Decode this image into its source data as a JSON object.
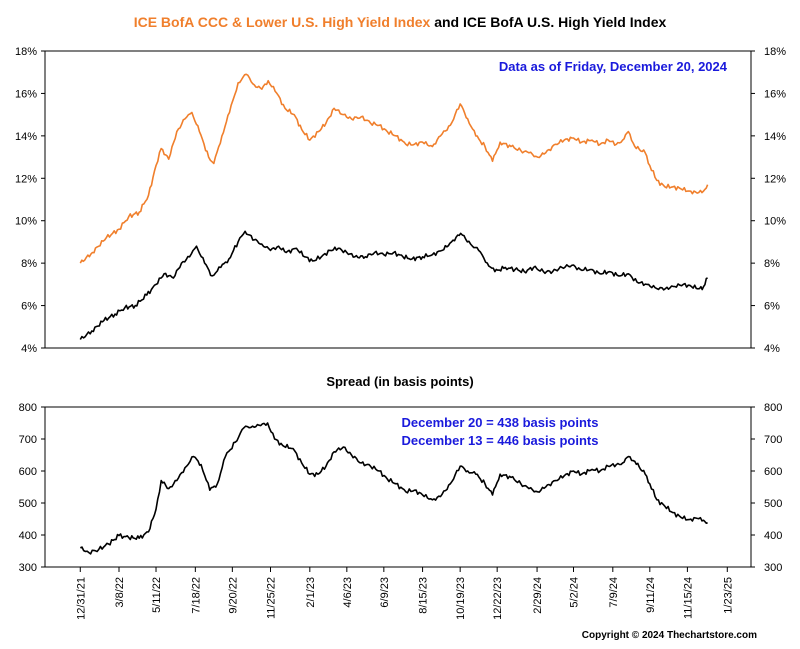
{
  "title": {
    "part1": "ICE BofA CCC & Lower U.S. High Yield Index",
    "part2": " and ICE BofA U.S. High Yield Index",
    "part1_color": "#f07f2c",
    "part2_color": "#000000"
  },
  "annotation_top": "Data as of Friday, December 20, 2024",
  "annotation_bottom_1": "December 20 = 438 basis points",
  "annotation_bottom_2": "December 13 = 446 basis points",
  "annotation_color": "#1a1adc",
  "spread_title": "Spread (in basis points)",
  "copyright": "Copyright © 2024 Thechartstore.com",
  "chart_data": [
    {
      "type": "line",
      "ylim": [
        4,
        18
      ],
      "yticks": [
        4,
        6,
        8,
        10,
        12,
        14,
        16,
        18
      ],
      "ytick_labels": [
        "4%",
        "6%",
        "8%",
        "10%",
        "12%",
        "14%",
        "16%",
        "18%"
      ],
      "grid": false,
      "legend": "none",
      "series": [
        {
          "color": "#f07f2c",
          "points": [
            [
              "2021-12-31",
              8.0
            ],
            [
              "2022-01-21",
              8.5
            ],
            [
              "2022-02-14",
              9.2
            ],
            [
              "2022-03-08",
              9.6
            ],
            [
              "2022-03-25",
              10.2
            ],
            [
              "2022-04-12",
              10.4
            ],
            [
              "2022-04-28",
              11.2
            ],
            [
              "2022-05-11",
              12.6
            ],
            [
              "2022-05-20",
              13.4
            ],
            [
              "2022-06-02",
              12.9
            ],
            [
              "2022-06-16",
              14.2
            ],
            [
              "2022-06-30",
              14.8
            ],
            [
              "2022-07-12",
              15.1
            ],
            [
              "2022-07-25",
              14.2
            ],
            [
              "2022-08-10",
              13.0
            ],
            [
              "2022-08-19",
              12.7
            ],
            [
              "2022-09-02",
              14.0
            ],
            [
              "2022-09-15",
              15.1
            ],
            [
              "2022-09-30",
              16.5
            ],
            [
              "2022-10-14",
              16.9
            ],
            [
              "2022-10-28",
              16.4
            ],
            [
              "2022-11-10",
              16.2
            ],
            [
              "2022-11-21",
              16.6
            ],
            [
              "2022-12-06",
              16.0
            ],
            [
              "2022-12-20",
              15.3
            ],
            [
              "2023-01-05",
              15.0
            ],
            [
              "2023-01-18",
              14.3
            ],
            [
              "2023-02-01",
              13.8
            ],
            [
              "2023-02-16",
              14.2
            ],
            [
              "2023-03-01",
              14.6
            ],
            [
              "2023-03-15",
              15.3
            ],
            [
              "2023-03-31",
              15.0
            ],
            [
              "2023-04-14",
              14.8
            ],
            [
              "2023-05-01",
              14.9
            ],
            [
              "2023-05-17",
              14.6
            ],
            [
              "2023-06-01",
              14.5
            ],
            [
              "2023-06-15",
              14.2
            ],
            [
              "2023-06-30",
              14.0
            ],
            [
              "2023-07-17",
              13.6
            ],
            [
              "2023-08-01",
              13.6
            ],
            [
              "2023-08-15",
              13.7
            ],
            [
              "2023-09-01",
              13.5
            ],
            [
              "2023-09-15",
              14.0
            ],
            [
              "2023-10-02",
              14.5
            ],
            [
              "2023-10-19",
              15.5
            ],
            [
              "2023-11-01",
              14.8
            ],
            [
              "2023-11-15",
              14.0
            ],
            [
              "2023-12-01",
              13.5
            ],
            [
              "2023-12-14",
              12.8
            ],
            [
              "2023-12-27",
              13.7
            ],
            [
              "2024-01-15",
              13.5
            ],
            [
              "2024-02-01",
              13.3
            ],
            [
              "2024-02-15",
              13.2
            ],
            [
              "2024-03-01",
              13.0
            ],
            [
              "2024-03-15",
              13.2
            ],
            [
              "2024-04-01",
              13.6
            ],
            [
              "2024-04-16",
              13.8
            ],
            [
              "2024-05-02",
              13.9
            ],
            [
              "2024-05-16",
              13.7
            ],
            [
              "2024-06-03",
              13.8
            ],
            [
              "2024-06-17",
              13.6
            ],
            [
              "2024-07-01",
              13.8
            ],
            [
              "2024-07-15",
              13.6
            ],
            [
              "2024-07-26",
              13.8
            ],
            [
              "2024-08-05",
              14.2
            ],
            [
              "2024-08-16",
              13.5
            ],
            [
              "2024-09-03",
              13.2
            ],
            [
              "2024-09-11",
              12.6
            ],
            [
              "2024-09-23",
              11.9
            ],
            [
              "2024-10-07",
              11.6
            ],
            [
              "2024-10-21",
              11.6
            ],
            [
              "2024-11-04",
              11.5
            ],
            [
              "2024-11-18",
              11.4
            ],
            [
              "2024-12-02",
              11.3
            ],
            [
              "2024-12-13",
              11.4
            ],
            [
              "2024-12-20",
              11.7
            ]
          ]
        },
        {
          "color": "#000000",
          "points": [
            [
              "2021-12-31",
              4.4
            ],
            [
              "2022-01-20",
              4.8
            ],
            [
              "2022-02-10",
              5.3
            ],
            [
              "2022-03-01",
              5.6
            ],
            [
              "2022-03-18",
              5.9
            ],
            [
              "2022-04-05",
              6.0
            ],
            [
              "2022-04-25",
              6.5
            ],
            [
              "2022-05-11",
              7.0
            ],
            [
              "2022-05-25",
              7.5
            ],
            [
              "2022-06-10",
              7.3
            ],
            [
              "2022-06-24",
              8.0
            ],
            [
              "2022-07-08",
              8.3
            ],
            [
              "2022-07-20",
              8.8
            ],
            [
              "2022-08-03",
              8.0
            ],
            [
              "2022-08-16",
              7.4
            ],
            [
              "2022-08-31",
              7.8
            ],
            [
              "2022-09-14",
              8.2
            ],
            [
              "2022-09-30",
              9.0
            ],
            [
              "2022-10-12",
              9.5
            ],
            [
              "2022-10-28",
              9.1
            ],
            [
              "2022-11-10",
              8.9
            ],
            [
              "2022-11-25",
              8.6
            ],
            [
              "2022-12-09",
              8.8
            ],
            [
              "2022-12-22",
              8.5
            ],
            [
              "2023-01-09",
              8.7
            ],
            [
              "2023-01-23",
              8.3
            ],
            [
              "2023-02-06",
              8.1
            ],
            [
              "2023-02-21",
              8.3
            ],
            [
              "2023-03-08",
              8.6
            ],
            [
              "2023-03-22",
              8.7
            ],
            [
              "2023-04-06",
              8.5
            ],
            [
              "2023-04-20",
              8.3
            ],
            [
              "2023-05-08",
              8.3
            ],
            [
              "2023-05-24",
              8.5
            ],
            [
              "2023-06-09",
              8.4
            ],
            [
              "2023-06-26",
              8.5
            ],
            [
              "2023-07-12",
              8.3
            ],
            [
              "2023-07-28",
              8.2
            ],
            [
              "2023-08-15",
              8.3
            ],
            [
              "2023-09-01",
              8.4
            ],
            [
              "2023-09-18",
              8.6
            ],
            [
              "2023-10-04",
              9.0
            ],
            [
              "2023-10-20",
              9.4
            ],
            [
              "2023-11-06",
              8.9
            ],
            [
              "2023-11-20",
              8.6
            ],
            [
              "2023-12-05",
              8.0
            ],
            [
              "2023-12-18",
              7.6
            ],
            [
              "2024-01-05",
              7.8
            ],
            [
              "2024-01-22",
              7.7
            ],
            [
              "2024-02-07",
              7.6
            ],
            [
              "2024-02-23",
              7.8
            ],
            [
              "2024-03-11",
              7.6
            ],
            [
              "2024-03-27",
              7.6
            ],
            [
              "2024-04-12",
              7.8
            ],
            [
              "2024-04-29",
              7.9
            ],
            [
              "2024-05-14",
              7.7
            ],
            [
              "2024-05-31",
              7.7
            ],
            [
              "2024-06-17",
              7.5
            ],
            [
              "2024-07-03",
              7.6
            ],
            [
              "2024-07-19",
              7.4
            ],
            [
              "2024-08-05",
              7.5
            ],
            [
              "2024-08-20",
              7.1
            ],
            [
              "2024-09-06",
              7.0
            ],
            [
              "2024-09-23",
              6.8
            ],
            [
              "2024-10-08",
              6.8
            ],
            [
              "2024-10-24",
              6.9
            ],
            [
              "2024-11-08",
              7.0
            ],
            [
              "2024-11-22",
              6.9
            ],
            [
              "2024-12-06",
              6.8
            ],
            [
              "2024-12-13",
              6.9
            ],
            [
              "2024-12-20",
              7.3
            ]
          ]
        }
      ]
    },
    {
      "type": "line",
      "ylim": [
        300,
        800
      ],
      "yticks": [
        300,
        400,
        500,
        600,
        700,
        800
      ],
      "ytick_labels": [
        "300",
        "400",
        "500",
        "600",
        "700",
        "800"
      ],
      "grid": false,
      "legend": "none",
      "xticks": [
        "2021-12-31",
        "2022-03-08",
        "2022-05-11",
        "2022-07-18",
        "2022-09-20",
        "2022-11-25",
        "2023-02-01",
        "2023-04-06",
        "2023-06-09",
        "2023-08-15",
        "2023-10-19",
        "2023-12-22",
        "2024-02-29",
        "2024-05-02",
        "2024-07-09",
        "2024-09-11",
        "2024-11-15",
        "2025-01-23"
      ],
      "xtick_labels": [
        "12/31/21",
        "3/8/22",
        "5/11/22",
        "7/18/22",
        "9/20/22",
        "11/25/22",
        "2/1/23",
        "4/6/23",
        "6/9/23",
        "8/15/23",
        "10/19/23",
        "12/22/23",
        "2/29/24",
        "5/2/24",
        "7/9/24",
        "9/11/24",
        "11/15/24",
        "1/23/25"
      ],
      "series": [
        {
          "color": "#000000",
          "points": [
            [
              "2021-12-31",
              360
            ],
            [
              "2022-01-15",
              345
            ],
            [
              "2022-02-01",
              355
            ],
            [
              "2022-02-18",
              372
            ],
            [
              "2022-03-08",
              398
            ],
            [
              "2022-03-25",
              392
            ],
            [
              "2022-04-12",
              390
            ],
            [
              "2022-04-28",
              410
            ],
            [
              "2022-05-11",
              480
            ],
            [
              "2022-05-20",
              570
            ],
            [
              "2022-06-02",
              545
            ],
            [
              "2022-06-16",
              570
            ],
            [
              "2022-06-30",
              610
            ],
            [
              "2022-07-15",
              645
            ],
            [
              "2022-07-28",
              620
            ],
            [
              "2022-08-12",
              540
            ],
            [
              "2022-08-25",
              560
            ],
            [
              "2022-09-08",
              645
            ],
            [
              "2022-09-25",
              690
            ],
            [
              "2022-10-10",
              735
            ],
            [
              "2022-10-25",
              740
            ],
            [
              "2022-11-08",
              742
            ],
            [
              "2022-11-20",
              750
            ],
            [
              "2022-12-02",
              700
            ],
            [
              "2022-12-16",
              680
            ],
            [
              "2023-01-03",
              670
            ],
            [
              "2023-01-18",
              625
            ],
            [
              "2023-02-01",
              590
            ],
            [
              "2023-02-15",
              590
            ],
            [
              "2023-03-01",
              615
            ],
            [
              "2023-03-15",
              660
            ],
            [
              "2023-03-31",
              675
            ],
            [
              "2023-04-14",
              650
            ],
            [
              "2023-05-01",
              625
            ],
            [
              "2023-05-17",
              615
            ],
            [
              "2023-06-01",
              600
            ],
            [
              "2023-06-15",
              575
            ],
            [
              "2023-06-30",
              560
            ],
            [
              "2023-07-17",
              535
            ],
            [
              "2023-08-01",
              540
            ],
            [
              "2023-08-15",
              525
            ],
            [
              "2023-09-01",
              510
            ],
            [
              "2023-09-15",
              520
            ],
            [
              "2023-10-02",
              560
            ],
            [
              "2023-10-19",
              615
            ],
            [
              "2023-11-01",
              600
            ],
            [
              "2023-11-15",
              590
            ],
            [
              "2023-12-01",
              560
            ],
            [
              "2023-12-14",
              525
            ],
            [
              "2023-12-27",
              590
            ],
            [
              "2024-01-15",
              580
            ],
            [
              "2024-02-01",
              560
            ],
            [
              "2024-02-15",
              545
            ],
            [
              "2024-03-01",
              535
            ],
            [
              "2024-03-15",
              550
            ],
            [
              "2024-04-01",
              570
            ],
            [
              "2024-04-16",
              585
            ],
            [
              "2024-05-02",
              600
            ],
            [
              "2024-05-16",
              590
            ],
            [
              "2024-06-03",
              605
            ],
            [
              "2024-06-17",
              600
            ],
            [
              "2024-07-01",
              615
            ],
            [
              "2024-07-15",
              620
            ],
            [
              "2024-07-26",
              625
            ],
            [
              "2024-08-05",
              645
            ],
            [
              "2024-08-16",
              630
            ],
            [
              "2024-09-03",
              590
            ],
            [
              "2024-09-11",
              560
            ],
            [
              "2024-09-23",
              510
            ],
            [
              "2024-10-07",
              490
            ],
            [
              "2024-10-21",
              470
            ],
            [
              "2024-11-04",
              455
            ],
            [
              "2024-11-18",
              448
            ],
            [
              "2024-12-02",
              452
            ],
            [
              "2024-12-13",
              446
            ],
            [
              "2024-12-20",
              438
            ]
          ]
        }
      ]
    }
  ]
}
